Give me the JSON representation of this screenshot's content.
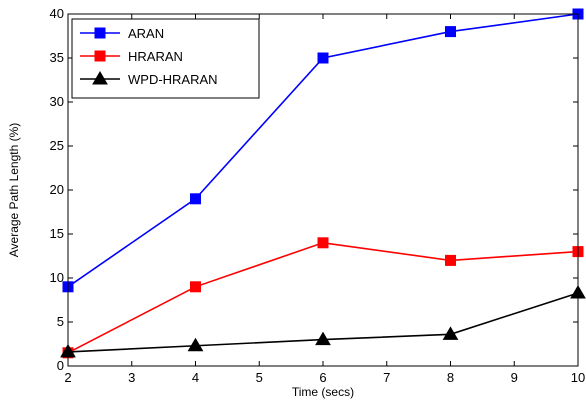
{
  "chart_data": {
    "type": "line",
    "title": "",
    "xlabel": "Time (secs)",
    "ylabel": "Average Path Length (%)",
    "xlim": [
      2,
      10
    ],
    "ylim": [
      0,
      40
    ],
    "xticks": [
      2,
      3,
      4,
      5,
      6,
      7,
      8,
      9,
      10
    ],
    "yticks": [
      0,
      5,
      10,
      15,
      20,
      25,
      30,
      35,
      40
    ],
    "x": [
      2,
      4,
      6,
      8,
      10
    ],
    "grid": false,
    "legend_position": "top-left",
    "series": [
      {
        "name": "ARAN",
        "values": [
          9,
          19,
          35,
          38,
          40
        ],
        "color": "#0000ff",
        "marker": "square"
      },
      {
        "name": "HRARAN",
        "values": [
          1.5,
          9,
          14,
          12,
          13
        ],
        "color": "#ff0000",
        "marker": "square"
      },
      {
        "name": "WPD-HRARAN",
        "values": [
          1.6,
          2.3,
          3,
          3.6,
          8.3
        ],
        "color": "#000000",
        "marker": "triangle"
      }
    ]
  }
}
